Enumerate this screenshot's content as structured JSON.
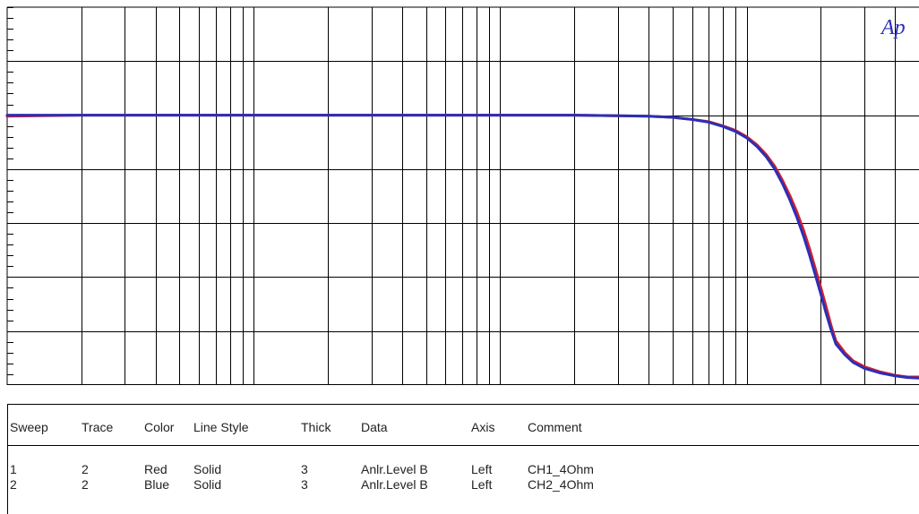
{
  "brand": {
    "logo_text": "Ap"
  },
  "colors": {
    "grid": "#000000",
    "series1": "#d61e2a",
    "series2": "#2a2fb8",
    "logo": "#2a2fb8"
  },
  "chart_data": {
    "type": "line",
    "title": "",
    "xlabel": "",
    "ylabel": "",
    "x_scale": "log",
    "xlim": [
      10,
      50000
    ],
    "ylim": [
      0,
      7
    ],
    "grid": true,
    "series": [
      {
        "name": "CH1_4Ohm",
        "color": "#d61e2a",
        "points": [
          [
            10,
            4.98
          ],
          [
            20,
            5.0
          ],
          [
            50,
            5.0
          ],
          [
            100,
            5.0
          ],
          [
            500,
            5.0
          ],
          [
            1000,
            5.0
          ],
          [
            2000,
            5.0
          ],
          [
            3000,
            4.99
          ],
          [
            4000,
            4.98
          ],
          [
            5000,
            4.96
          ],
          [
            6000,
            4.92
          ],
          [
            7000,
            4.88
          ],
          [
            8000,
            4.8
          ],
          [
            9000,
            4.72
          ],
          [
            10000,
            4.6
          ],
          [
            11000,
            4.45
          ],
          [
            12000,
            4.27
          ],
          [
            13000,
            4.05
          ],
          [
            14000,
            3.78
          ],
          [
            15000,
            3.5
          ],
          [
            16000,
            3.2
          ],
          [
            17000,
            2.87
          ],
          [
            18000,
            2.52
          ],
          [
            19000,
            2.15
          ],
          [
            20000,
            1.8
          ],
          [
            21000,
            1.45
          ],
          [
            22000,
            1.1
          ],
          [
            23000,
            0.82
          ],
          [
            25000,
            0.6
          ],
          [
            27000,
            0.45
          ],
          [
            30000,
            0.34
          ],
          [
            35000,
            0.24
          ],
          [
            40000,
            0.18
          ],
          [
            45000,
            0.15
          ],
          [
            50000,
            0.15
          ]
        ]
      },
      {
        "name": "CH2_4Ohm",
        "color": "#2a2fb8",
        "points": [
          [
            10,
            5.0
          ],
          [
            20,
            5.0
          ],
          [
            50,
            5.0
          ],
          [
            100,
            5.0
          ],
          [
            500,
            5.0
          ],
          [
            1000,
            5.0
          ],
          [
            2000,
            5.0
          ],
          [
            3000,
            4.99
          ],
          [
            4000,
            4.98
          ],
          [
            5000,
            4.96
          ],
          [
            6000,
            4.92
          ],
          [
            7000,
            4.87
          ],
          [
            8000,
            4.79
          ],
          [
            9000,
            4.7
          ],
          [
            10000,
            4.58
          ],
          [
            11000,
            4.42
          ],
          [
            12000,
            4.23
          ],
          [
            13000,
            4.0
          ],
          [
            14000,
            3.72
          ],
          [
            15000,
            3.42
          ],
          [
            16000,
            3.1
          ],
          [
            17000,
            2.76
          ],
          [
            18000,
            2.4
          ],
          [
            19000,
            2.03
          ],
          [
            20000,
            1.68
          ],
          [
            21000,
            1.33
          ],
          [
            22000,
            1.02
          ],
          [
            23000,
            0.76
          ],
          [
            25000,
            0.56
          ],
          [
            27000,
            0.42
          ],
          [
            30000,
            0.31
          ],
          [
            35000,
            0.22
          ],
          [
            40000,
            0.17
          ],
          [
            45000,
            0.14
          ],
          [
            50000,
            0.13
          ]
        ]
      }
    ]
  },
  "legend": {
    "headers": {
      "sweep": "Sweep",
      "trace": "Trace",
      "color": "Color",
      "line_style": "Line Style",
      "thick": "Thick",
      "data": "Data",
      "axis": "Axis",
      "comment": "Comment"
    },
    "rows": [
      {
        "sweep": "1",
        "trace": "2",
        "color": "Red",
        "line_style": "Solid",
        "thick": "3",
        "data": "Anlr.Level B",
        "axis": "Left",
        "comment": "CH1_4Ohm"
      },
      {
        "sweep": "2",
        "trace": "2",
        "color": "Blue",
        "line_style": "Solid",
        "thick": "3",
        "data": "Anlr.Level B",
        "axis": "Left",
        "comment": "CH2_4Ohm"
      }
    ]
  }
}
